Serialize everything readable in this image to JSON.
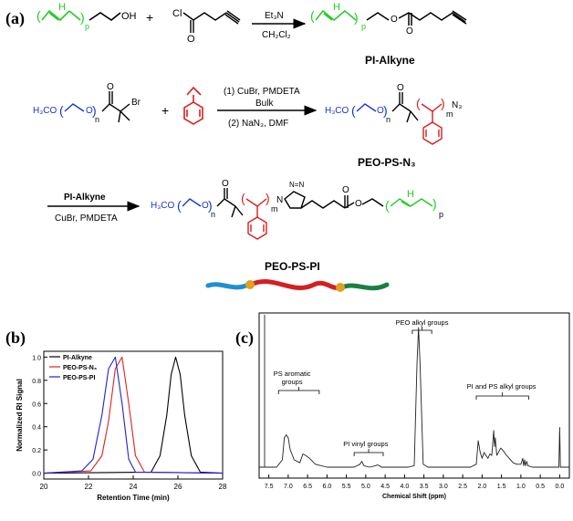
{
  "panel_a": {
    "label": "(a)",
    "row1": {
      "oh": "OH",
      "p": "p",
      "cl": "Cl",
      "o": "O",
      "plus": "+",
      "reagent_top": "Et₃N",
      "reagent_bottom": "CH₂Cl₂",
      "product_name": "PI-Alkyne"
    },
    "row2": {
      "h3co": "H₃CO",
      "br": "Br",
      "n": "n",
      "plus": "+",
      "cond1": "(1) CuBr, PMDETA",
      "cond1b": "Bulk",
      "cond2": "(2) NaN₃, DMF",
      "n3": "N₃",
      "m": "m",
      "product_name": "PEO-PS-N₃"
    },
    "row3": {
      "reagent_top": "PI-Alkyne",
      "reagent_bottom": "CuBr, PMDETA",
      "h3co": "H₃CO",
      "n": "n",
      "m": "m",
      "p": "p",
      "product_name": "PEO-PS-PI"
    },
    "colors": {
      "peo": "#1a33cc",
      "ps": "#d81e1e",
      "pi": "#22cc22",
      "bead": "#e0a020",
      "chain_blue": "#1e8fd0",
      "chain_red": "#d42020",
      "chain_green": "#1a8040"
    }
  },
  "panel_b": {
    "label": "(b)",
    "chart_data": {
      "type": "line",
      "xlabel": "Retention Time (min)",
      "ylabel": "Normalized RI Signal",
      "xlim": [
        20,
        28
      ],
      "ylim": [
        -0.05,
        1.05
      ],
      "xticks": [
        "20",
        "22",
        "24",
        "26",
        "28"
      ],
      "yticks": [
        "0.0",
        "0.2",
        "0.4",
        "0.6",
        "0.8",
        "1.0"
      ],
      "legend": "top-left",
      "series": [
        {
          "name": "PI-Alkyne",
          "color": "#000000",
          "x": [
            20.0,
            24.8,
            25.2,
            25.5,
            25.7,
            25.9,
            26.1,
            26.3,
            26.6,
            27.0,
            28.0
          ],
          "y": [
            0.0,
            0.01,
            0.15,
            0.5,
            0.85,
            1.0,
            0.85,
            0.5,
            0.15,
            0.01,
            0.0
          ]
        },
        {
          "name": "PEO-PS-N₃",
          "color": "#e02020",
          "x": [
            20.0,
            22.1,
            22.6,
            22.9,
            23.2,
            23.5,
            23.8,
            24.1,
            24.5,
            28.0
          ],
          "y": [
            0.0,
            0.02,
            0.15,
            0.45,
            0.9,
            1.0,
            0.6,
            0.15,
            0.01,
            0.0
          ]
        },
        {
          "name": "PEO-PS-PI",
          "color": "#2020e0",
          "x": [
            20.0,
            21.7,
            22.2,
            22.6,
            22.9,
            23.2,
            23.5,
            23.8,
            24.1,
            28.0
          ],
          "y": [
            0.0,
            0.02,
            0.12,
            0.5,
            0.9,
            1.0,
            0.6,
            0.12,
            0.01,
            0.0
          ]
        }
      ]
    }
  },
  "panel_c": {
    "label": "(c)",
    "chart_data": {
      "type": "line",
      "xlabel": "Chemical Shift (ppm)",
      "xticks": [
        "7.5",
        "7.0",
        "6.5",
        "6.0",
        "5.5",
        "5.0",
        "4.5",
        "4.0",
        "3.5",
        "3.0",
        "2.5",
        "2.0",
        "1.5",
        "1.0",
        "0.5",
        "0.0"
      ],
      "xlim": [
        7.75,
        -0.25
      ],
      "annotations": [
        "PS aromatic groups",
        "PI vinyl groups",
        "PEO alkyl groups",
        "PI and PS alkyl groups"
      ],
      "series": [
        {
          "name": "",
          "color": "#222222",
          "x": [
            7.75,
            7.3,
            7.15,
            7.1,
            7.05,
            7.0,
            6.95,
            6.85,
            6.7,
            6.62,
            6.55,
            6.5,
            6.45,
            6.3,
            6.0,
            5.3,
            5.15,
            5.1,
            5.05,
            4.9,
            4.75,
            4.7,
            4.65,
            4.6,
            3.9,
            3.75,
            3.68,
            3.64,
            3.6,
            3.52,
            3.4,
            2.3,
            2.15,
            2.1,
            2.05,
            2.0,
            1.95,
            1.9,
            1.85,
            1.8,
            1.75,
            1.7,
            1.68,
            1.66,
            1.62,
            1.58,
            1.52,
            1.45,
            1.4,
            1.3,
            1.2,
            1.1,
            1.0,
            0.95,
            0.93,
            0.9,
            0.88,
            0.85,
            0.82,
            0.7,
            0.3,
            0.02,
            0.0,
            -0.02,
            -0.25
          ],
          "y": [
            0.0,
            0.0,
            0.05,
            0.2,
            0.22,
            0.2,
            0.12,
            0.05,
            0.03,
            0.09,
            0.08,
            0.07,
            0.06,
            0.02,
            0.0,
            0.0,
            0.02,
            0.04,
            0.01,
            0.0,
            0.01,
            0.015,
            0.01,
            0.0,
            0.0,
            0.01,
            0.7,
            0.95,
            0.7,
            0.02,
            0.0,
            0.0,
            0.02,
            0.18,
            0.1,
            0.06,
            0.1,
            0.08,
            0.06,
            0.09,
            0.08,
            0.25,
            0.14,
            0.2,
            0.08,
            0.1,
            0.13,
            0.11,
            0.09,
            0.06,
            0.03,
            0.02,
            0.02,
            0.06,
            0.01,
            0.05,
            0.01,
            0.04,
            0.01,
            0.0,
            0.0,
            0.0,
            0.27,
            0.0,
            0.0
          ]
        }
      ]
    }
  }
}
